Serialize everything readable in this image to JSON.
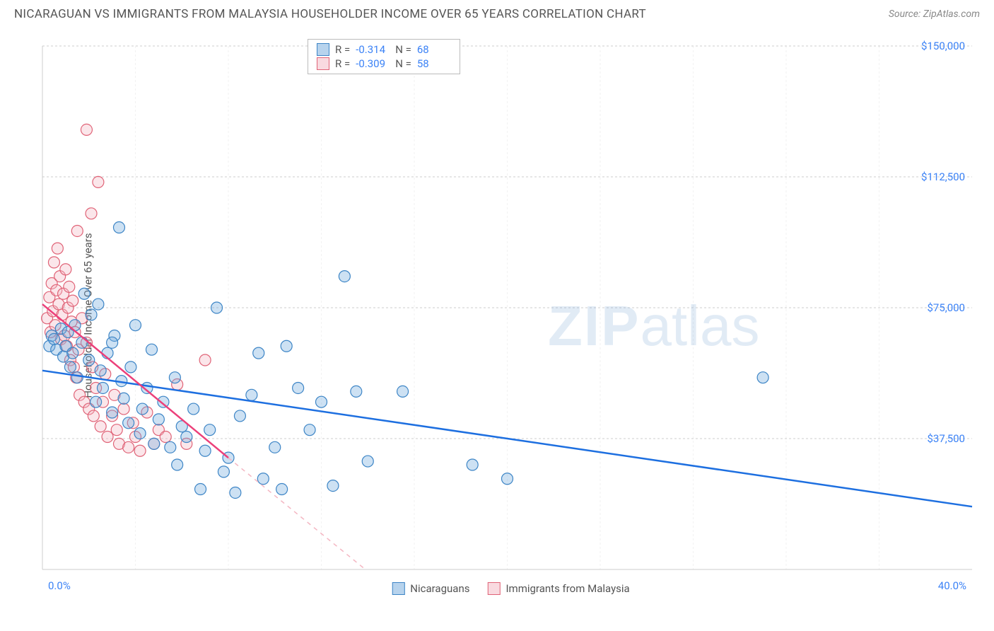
{
  "title": "NICARAGUAN VS IMMIGRANTS FROM MALAYSIA HOUSEHOLDER INCOME OVER 65 YEARS CORRELATION CHART",
  "source": "Source: ZipAtlas.com",
  "y_axis_label": "Householder Income Over 65 years",
  "watermark_zip": "ZIP",
  "watermark_atlas": "atlas",
  "chart": {
    "type": "scatter",
    "xlim": [
      0,
      40
    ],
    "ylim": [
      0,
      150000
    ],
    "x_tick_min_label": "0.0%",
    "x_tick_max_label": "40.0%",
    "y_ticks": [
      37500,
      75000,
      112500,
      150000
    ],
    "y_tick_labels": [
      "$37,500",
      "$75,000",
      "$112,500",
      "$150,000"
    ],
    "grid_color": "#cccccc",
    "background_color": "#ffffff",
    "marker_radius": 8,
    "series": [
      {
        "name": "Nicaraguans",
        "color_fill": "#6fa8dc",
        "color_stroke": "#3d85c6",
        "R": "-0.314",
        "N": "68",
        "trend": {
          "x1": 0,
          "y1": 57000,
          "x2": 40,
          "y2": 18000,
          "color": "#1d6fe0"
        },
        "points": [
          [
            0.3,
            64000
          ],
          [
            0.4,
            67000
          ],
          [
            0.5,
            66000
          ],
          [
            0.6,
            63000
          ],
          [
            0.8,
            69000
          ],
          [
            0.9,
            61000
          ],
          [
            1.0,
            64000
          ],
          [
            1.1,
            68000
          ],
          [
            1.2,
            58000
          ],
          [
            1.3,
            62000
          ],
          [
            1.4,
            70000
          ],
          [
            1.5,
            55000
          ],
          [
            1.7,
            65000
          ],
          [
            1.8,
            79000
          ],
          [
            2.0,
            60000
          ],
          [
            2.1,
            73000
          ],
          [
            2.3,
            48000
          ],
          [
            2.4,
            76000
          ],
          [
            2.5,
            57000
          ],
          [
            2.6,
            52000
          ],
          [
            2.8,
            62000
          ],
          [
            3.0,
            45000
          ],
          [
            3.1,
            67000
          ],
          [
            3.3,
            98000
          ],
          [
            3.4,
            54000
          ],
          [
            3.5,
            49000
          ],
          [
            3.7,
            42000
          ],
          [
            3.8,
            58000
          ],
          [
            4.0,
            70000
          ],
          [
            4.2,
            39000
          ],
          [
            4.3,
            46000
          ],
          [
            4.5,
            52000
          ],
          [
            4.7,
            63000
          ],
          [
            4.8,
            36000
          ],
          [
            5.0,
            43000
          ],
          [
            5.2,
            48000
          ],
          [
            5.5,
            35000
          ],
          [
            5.7,
            55000
          ],
          [
            5.8,
            30000
          ],
          [
            6.0,
            41000
          ],
          [
            6.2,
            38000
          ],
          [
            6.5,
            46000
          ],
          [
            6.8,
            23000
          ],
          [
            7.0,
            34000
          ],
          [
            7.2,
            40000
          ],
          [
            7.5,
            75000
          ],
          [
            7.8,
            28000
          ],
          [
            8.0,
            32000
          ],
          [
            8.3,
            22000
          ],
          [
            8.5,
            44000
          ],
          [
            9.0,
            50000
          ],
          [
            9.3,
            62000
          ],
          [
            9.5,
            26000
          ],
          [
            10.0,
            35000
          ],
          [
            10.3,
            23000
          ],
          [
            10.5,
            64000
          ],
          [
            11.0,
            52000
          ],
          [
            11.5,
            40000
          ],
          [
            12.0,
            48000
          ],
          [
            12.5,
            24000
          ],
          [
            13.0,
            84000
          ],
          [
            13.5,
            51000
          ],
          [
            14.0,
            31000
          ],
          [
            15.5,
            51000
          ],
          [
            18.5,
            30000
          ],
          [
            20.0,
            26000
          ],
          [
            31.0,
            55000
          ],
          [
            3.0,
            65000
          ]
        ]
      },
      {
        "name": "Immigrants from Malaysia",
        "color_fill": "#f4b6c2",
        "color_stroke": "#e06377",
        "R": "-0.309",
        "N": "58",
        "trend_solid": {
          "x1": 0,
          "y1": 76000,
          "x2": 8,
          "y2": 32000,
          "color": "#ec407a"
        },
        "trend_dash": {
          "x1": 8,
          "y1": 32000,
          "x2": 15,
          "y2": -6000,
          "color": "#f4b6c2"
        },
        "points": [
          [
            0.2,
            72000
          ],
          [
            0.3,
            78000
          ],
          [
            0.35,
            68000
          ],
          [
            0.4,
            82000
          ],
          [
            0.45,
            74000
          ],
          [
            0.5,
            88000
          ],
          [
            0.55,
            70000
          ],
          [
            0.6,
            80000
          ],
          [
            0.65,
            92000
          ],
          [
            0.7,
            76000
          ],
          [
            0.75,
            84000
          ],
          [
            0.8,
            66000
          ],
          [
            0.85,
            73000
          ],
          [
            0.9,
            79000
          ],
          [
            0.95,
            67000
          ],
          [
            1.0,
            86000
          ],
          [
            1.05,
            64000
          ],
          [
            1.1,
            75000
          ],
          [
            1.15,
            81000
          ],
          [
            1.2,
            60000
          ],
          [
            1.25,
            71000
          ],
          [
            1.3,
            77000
          ],
          [
            1.35,
            58000
          ],
          [
            1.4,
            68000
          ],
          [
            1.45,
            55000
          ],
          [
            1.5,
            97000
          ],
          [
            1.55,
            63000
          ],
          [
            1.6,
            50000
          ],
          [
            1.7,
            72000
          ],
          [
            1.8,
            48000
          ],
          [
            1.9,
            126000
          ],
          [
            1.9,
            65000
          ],
          [
            2.0,
            46000
          ],
          [
            2.1,
            102000
          ],
          [
            2.15,
            58000
          ],
          [
            2.2,
            44000
          ],
          [
            2.3,
            52000
          ],
          [
            2.4,
            111000
          ],
          [
            2.5,
            41000
          ],
          [
            2.6,
            48000
          ],
          [
            2.7,
            56000
          ],
          [
            2.8,
            38000
          ],
          [
            3.0,
            44000
          ],
          [
            3.1,
            50000
          ],
          [
            3.2,
            40000
          ],
          [
            3.3,
            36000
          ],
          [
            3.5,
            46000
          ],
          [
            3.7,
            35000
          ],
          [
            3.9,
            42000
          ],
          [
            4.0,
            38000
          ],
          [
            4.2,
            34000
          ],
          [
            4.5,
            45000
          ],
          [
            4.8,
            36000
          ],
          [
            5.0,
            40000
          ],
          [
            5.3,
            38000
          ],
          [
            5.8,
            53000
          ],
          [
            6.2,
            36000
          ],
          [
            7.0,
            60000
          ]
        ]
      }
    ]
  },
  "stats_box": {
    "r_label": "R =",
    "n_label": "N ="
  },
  "legend": {
    "series1": "Nicaraguans",
    "series2": "Immigrants from Malaysia"
  }
}
